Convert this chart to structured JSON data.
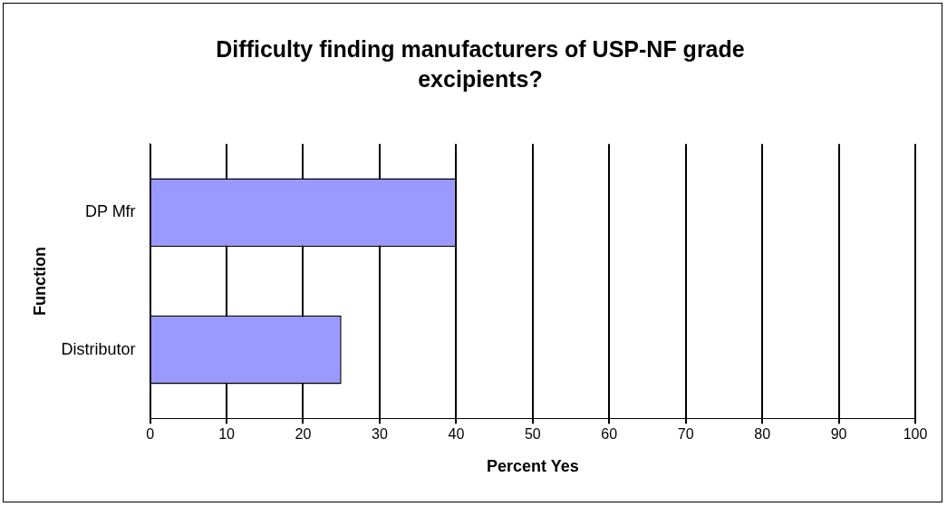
{
  "chart_data": {
    "type": "bar",
    "orientation": "horizontal",
    "title": "Difficulty finding manufacturers of USP-NF grade excipients?",
    "categories": [
      "DP Mfr",
      "Distributor"
    ],
    "values": [
      40,
      25
    ],
    "color": "#9999ff",
    "xlabel": "Percent Yes",
    "ylabel": "Function",
    "xlim": [
      0,
      100
    ],
    "xticks": [
      0,
      10,
      20,
      30,
      40,
      50,
      60,
      70,
      80,
      90,
      100
    ],
    "grid": "x",
    "legend": false
  }
}
